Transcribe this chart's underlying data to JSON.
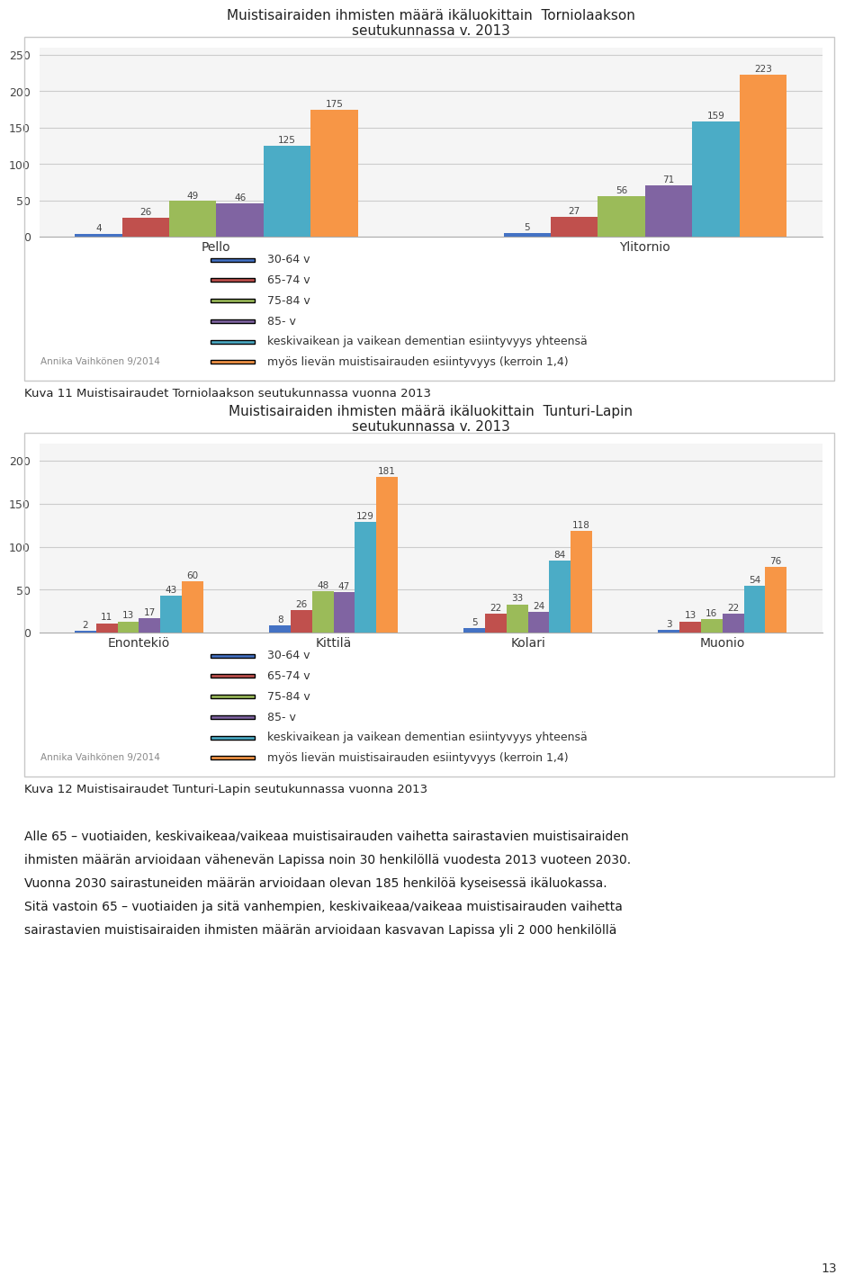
{
  "chart1": {
    "title": "Muistisairaiden ihmisten määrä ikäluokittain  Torniolaakson\nseutukunnassa v. 2013",
    "categories": [
      "Pello",
      "Ylitornio"
    ],
    "series": {
      "30-64 v": [
        4,
        5
      ],
      "65-74 v": [
        26,
        27
      ],
      "75-84 v": [
        49,
        56
      ],
      "85- v": [
        46,
        71
      ],
      "keskivaikean ja vaikean dementian esiintyvyys yhteensä": [
        125,
        159
      ],
      "myös lievän muistisairauden esiintyvyys (kerroin 1,4)": [
        175,
        223
      ]
    },
    "colors": {
      "30-64 v": "#4472c4",
      "65-74 v": "#c0504d",
      "75-84 v": "#9bbb59",
      "85- v": "#8064a2",
      "keskivaikean ja vaikean dementian esiintyvyys yhteensä": "#4bacc6",
      "myös lievän muistisairauden esiintyvyys (kerroin 1,4)": "#f79646"
    },
    "ylim": [
      0,
      260
    ],
    "yticks": [
      0,
      50,
      100,
      150,
      200,
      250
    ],
    "caption": "Kuva 11 Muistisairaudet Torniolaakson seutukunnassa vuonna 2013",
    "watermark": "Annika Vaihkönen 9/2014"
  },
  "chart2": {
    "title": "Muistisairaiden ihmisten määrä ikäluokittain  Tunturi-Lapin\nseutukunnassa v. 2013",
    "categories": [
      "Enontekiö",
      "Kittilä",
      "Kolari",
      "Muonio"
    ],
    "series": {
      "30-64 v": [
        2,
        8,
        5,
        3
      ],
      "65-74 v": [
        11,
        26,
        22,
        13
      ],
      "75-84 v": [
        13,
        48,
        33,
        16
      ],
      "85- v": [
        17,
        47,
        24,
        22
      ],
      "keskivaikean ja vaikean dementian esiintyvyys yhteensä": [
        43,
        129,
        84,
        54
      ],
      "myös lievän muistisairauden esiintyvyys (kerroin 1,4)": [
        60,
        181,
        118,
        76
      ]
    },
    "colors": {
      "30-64 v": "#4472c4",
      "65-74 v": "#c0504d",
      "75-84 v": "#9bbb59",
      "85- v": "#8064a2",
      "keskivaikean ja vaikean dementian esiintyvyys yhteensä": "#4bacc6",
      "myös lievän muistisairauden esiintyvyys (kerroin 1,4)": "#f79646"
    },
    "ylim": [
      0,
      220
    ],
    "yticks": [
      0,
      50,
      100,
      150,
      200
    ],
    "caption": "Kuva 12 Muistisairaudet Tunturi-Lapin seutukunnassa vuonna 2013",
    "watermark": "Annika Vaihkönen 9/2014"
  },
  "legend_entries": [
    "30-64 v",
    "65-74 v",
    "75-84 v",
    "85- v",
    "keskivaikean ja vaikean dementian esiintyvyys yhteensä",
    "myös lievän muistisairauden esiintyvyys (kerroin 1,4)"
  ],
  "text_lines": [
    "Alle 65 – vuotiaiden, keskivaikeaa/vaikeaa muistisairauden vaihetta sairastavien muistisairaiden",
    "ihmisten määrän arvioidaan vähenevän Lapissa noin 30 henkilöllä vuodesta 2013 vuoteen 2030.",
    "Vuonna 2030 sairastuneiden määrän arvioidaan olevan 185 henkilöä kyseisessä ikäluokassa.",
    "Sitä vastoin 65 – vuotiaiden ja sitä vanhempien, keskivaikeaa/vaikeaa muistisairauden vaihetta",
    "sairastavien muistisairaiden ihmisten määrän arvioidaan kasvavan Lapissa yli 2 000 henkilöllä"
  ],
  "page_number": "13",
  "bg_color": "#ffffff",
  "border_color": "#c8c8c8"
}
